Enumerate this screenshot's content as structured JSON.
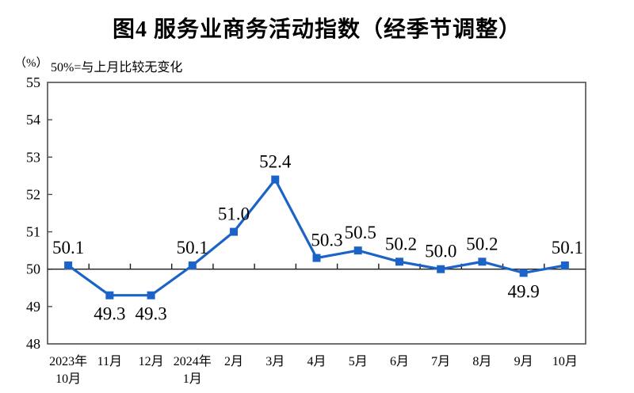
{
  "title": "图4  服务业商务活动指数（经季节调整）",
  "unit_label": "（%）",
  "note": "50%=与上月比较无变化",
  "colors": {
    "line": "#1C63C7",
    "marker": "#1C63C7",
    "axis": "#4D4D4D",
    "ref_line": "#1A1A1A",
    "text": "#000000",
    "background": "#FFFFFF"
  },
  "chart_data": {
    "type": "line",
    "title": "图4  服务业商务活动指数（经季节调整）",
    "subtitle": "50%=与上月比较无变化",
    "ylabel": "（%）",
    "xlabel": "",
    "categories": [
      [
        "2023年",
        "10月"
      ],
      [
        "11月"
      ],
      [
        "12月"
      ],
      [
        "2024年",
        "1月"
      ],
      [
        "2月"
      ],
      [
        "3月"
      ],
      [
        "4月"
      ],
      [
        "5月"
      ],
      [
        "6月"
      ],
      [
        "7月"
      ],
      [
        "8月"
      ],
      [
        "9月"
      ],
      [
        "10月"
      ]
    ],
    "values": [
      50.1,
      49.3,
      49.3,
      50.1,
      51.0,
      52.4,
      50.3,
      50.5,
      50.2,
      50.0,
      50.2,
      49.9,
      50.1
    ],
    "point_labels": [
      "50.1",
      "49.3",
      "49.3",
      "50.1",
      "51.0",
      "52.4",
      "50.3",
      "50.5",
      "50.2",
      "50.0",
      "50.2",
      "49.9",
      "50.1"
    ],
    "label_positions": [
      "above",
      "below",
      "below",
      "above",
      "above",
      "above",
      "above",
      "above",
      "above",
      "above",
      "above",
      "below",
      "above"
    ],
    "label_dx": [
      0,
      0,
      0,
      0,
      0,
      0,
      13,
      3,
      2,
      0,
      0,
      0,
      3
    ],
    "ylim": [
      48,
      55
    ],
    "yticks": [
      48,
      49,
      50,
      51,
      52,
      53,
      54,
      55
    ],
    "ref_value": 50,
    "grid": "off",
    "legend": "none",
    "marker_shape": "square"
  }
}
